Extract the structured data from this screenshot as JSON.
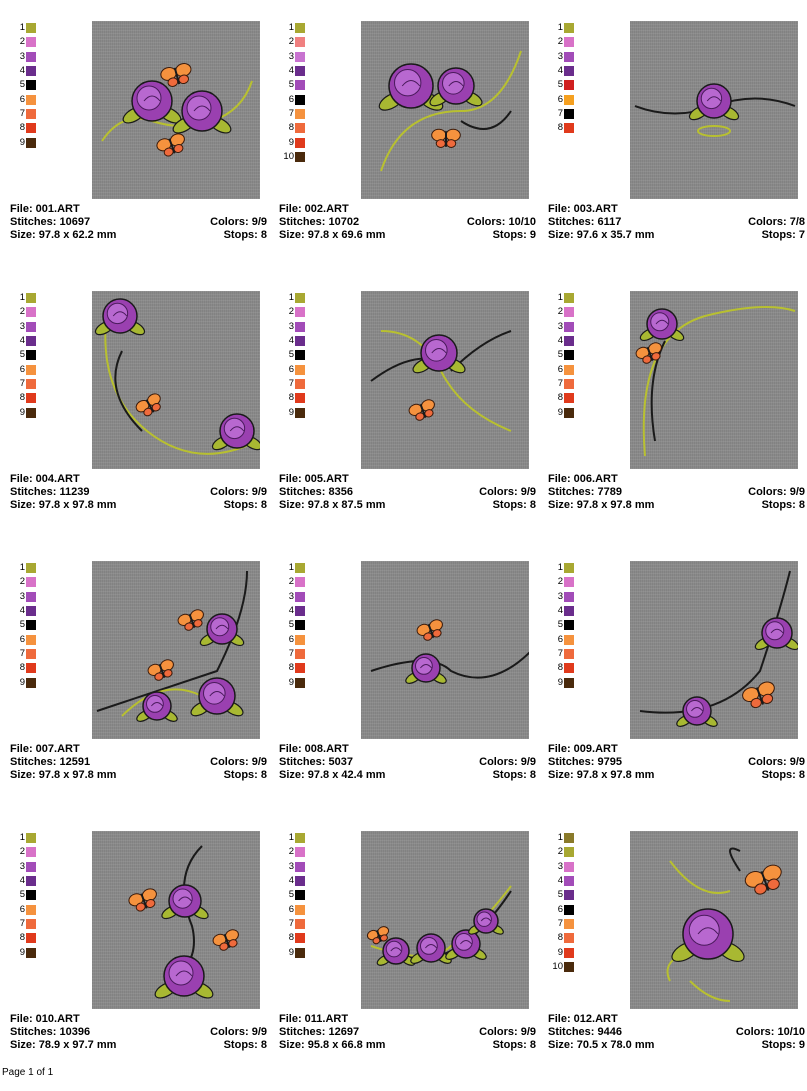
{
  "palette": {
    "1": "#a8a832",
    "2": "#d872c8",
    "3": "#9a40b0",
    "4": "#6a2d8c",
    "5": "#000000",
    "6": "#f5923e",
    "7": "#ef6a3c",
    "8": "#e03a1c",
    "9": "#4a2a0c",
    "10": "#4a2a0c"
  },
  "designs": [
    {
      "file": "File: 001.ART",
      "stitches": "Stitches: 10697",
      "colors": "Colors: 9/9",
      "size": "Size: 97.8 x 62.2 mm",
      "stops": "Stops: 8",
      "swatches": [
        [
          "1",
          "#a8a832"
        ],
        [
          "2",
          "#d872c8"
        ],
        [
          "3",
          "#a24cb8"
        ],
        [
          "4",
          "#6a2d8c"
        ],
        [
          "5",
          "#000000"
        ],
        [
          "6",
          "#f5923e"
        ],
        [
          "7",
          "#ef6a3c"
        ],
        [
          "8",
          "#e03a1c"
        ],
        [
          "9",
          "#4a2a0c"
        ]
      ]
    },
    {
      "file": "File: 002.ART",
      "stitches": "Stitches: 10702",
      "colors": "Colors: 10/10",
      "size": "Size: 97.8 x 69.6 mm",
      "stops": "Stops: 9",
      "swatches": [
        [
          "1",
          "#a8a832"
        ],
        [
          "2",
          "#f08080"
        ],
        [
          "3",
          "#c873d0"
        ],
        [
          "4",
          "#6a2d8c"
        ],
        [
          "5",
          "#a24cb8"
        ],
        [
          "6",
          "#000000"
        ],
        [
          "7",
          "#f5923e"
        ],
        [
          "8",
          "#ef6a3c"
        ],
        [
          "9",
          "#e03a1c"
        ],
        [
          "10",
          "#4a2a0c"
        ]
      ]
    },
    {
      "file": "File: 003.ART",
      "stitches": "Stitches: 6117",
      "colors": "Colors: 7/8",
      "size": "Size: 97.6 x 35.7 mm",
      "stops": "Stops: 7",
      "swatches": [
        [
          "1",
          "#a8a832"
        ],
        [
          "2",
          "#d872c8"
        ],
        [
          "3",
          "#a24cb8"
        ],
        [
          "4",
          "#6a2d8c"
        ],
        [
          "5",
          "#d02020"
        ],
        [
          "6",
          "#f5a020"
        ],
        [
          "7",
          "#000000"
        ],
        [
          "8",
          "#e03a1c"
        ]
      ]
    },
    {
      "file": "File: 004.ART",
      "stitches": "Stitches: 11239",
      "colors": "Colors: 9/9",
      "size": "Size: 97.8 x 97.8 mm",
      "stops": "Stops: 8",
      "swatches": [
        [
          "1",
          "#a8a832"
        ],
        [
          "2",
          "#d872c8"
        ],
        [
          "3",
          "#a24cb8"
        ],
        [
          "4",
          "#6a2d8c"
        ],
        [
          "5",
          "#000000"
        ],
        [
          "6",
          "#f5923e"
        ],
        [
          "7",
          "#ef6a3c"
        ],
        [
          "8",
          "#e03a1c"
        ],
        [
          "9",
          "#4a2a0c"
        ]
      ]
    },
    {
      "file": "File: 005.ART",
      "stitches": "Stitches: 8356",
      "colors": "Colors: 9/9",
      "size": "Size: 97.8 x 87.5 mm",
      "stops": "Stops: 8",
      "swatches": [
        [
          "1",
          "#a8a832"
        ],
        [
          "2",
          "#d872c8"
        ],
        [
          "3",
          "#a24cb8"
        ],
        [
          "4",
          "#6a2d8c"
        ],
        [
          "5",
          "#000000"
        ],
        [
          "6",
          "#f5923e"
        ],
        [
          "7",
          "#ef6a3c"
        ],
        [
          "8",
          "#e03a1c"
        ],
        [
          "9",
          "#4a2a0c"
        ]
      ]
    },
    {
      "file": "File: 006.ART",
      "stitches": "Stitches: 7789",
      "colors": "Colors: 9/9",
      "size": "Size: 97.8 x 97.8 mm",
      "stops": "Stops: 8",
      "swatches": [
        [
          "1",
          "#a8a832"
        ],
        [
          "2",
          "#d872c8"
        ],
        [
          "3",
          "#a24cb8"
        ],
        [
          "4",
          "#6a2d8c"
        ],
        [
          "5",
          "#000000"
        ],
        [
          "6",
          "#f5923e"
        ],
        [
          "7",
          "#ef6a3c"
        ],
        [
          "8",
          "#e03a1c"
        ],
        [
          "9",
          "#4a2a0c"
        ]
      ]
    },
    {
      "file": "File: 007.ART",
      "stitches": "Stitches: 12591",
      "colors": "Colors: 9/9",
      "size": "Size: 97.8 x 97.8 mm",
      "stops": "Stops: 8",
      "swatches": [
        [
          "1",
          "#a8a832"
        ],
        [
          "2",
          "#d872c8"
        ],
        [
          "3",
          "#a24cb8"
        ],
        [
          "4",
          "#6a2d8c"
        ],
        [
          "5",
          "#000000"
        ],
        [
          "6",
          "#f5923e"
        ],
        [
          "7",
          "#ef6a3c"
        ],
        [
          "8",
          "#e03a1c"
        ],
        [
          "9",
          "#4a2a0c"
        ]
      ]
    },
    {
      "file": "File: 008.ART",
      "stitches": "Stitches: 5037",
      "colors": "Colors: 9/9",
      "size": "Size: 97.8 x 42.4 mm",
      "stops": "Stops: 8",
      "swatches": [
        [
          "1",
          "#a8a832"
        ],
        [
          "2",
          "#d872c8"
        ],
        [
          "3",
          "#a24cb8"
        ],
        [
          "4",
          "#6a2d8c"
        ],
        [
          "5",
          "#000000"
        ],
        [
          "6",
          "#f5923e"
        ],
        [
          "7",
          "#ef6a3c"
        ],
        [
          "8",
          "#e03a1c"
        ],
        [
          "9",
          "#4a2a0c"
        ]
      ]
    },
    {
      "file": "File: 009.ART",
      "stitches": "Stitches: 9795",
      "colors": "Colors: 9/9",
      "size": "Size: 97.8 x 97.8 mm",
      "stops": "Stops: 8",
      "swatches": [
        [
          "1",
          "#a8a832"
        ],
        [
          "2",
          "#d872c8"
        ],
        [
          "3",
          "#a24cb8"
        ],
        [
          "4",
          "#6a2d8c"
        ],
        [
          "5",
          "#000000"
        ],
        [
          "6",
          "#f5923e"
        ],
        [
          "7",
          "#ef6a3c"
        ],
        [
          "8",
          "#e03a1c"
        ],
        [
          "9",
          "#4a2a0c"
        ]
      ]
    },
    {
      "file": "File: 010.ART",
      "stitches": "Stitches: 10396",
      "colors": "Colors: 9/9",
      "size": "Size: 78.9 x 97.7 mm",
      "stops": "Stops: 8",
      "swatches": [
        [
          "1",
          "#a8a832"
        ],
        [
          "2",
          "#d872c8"
        ],
        [
          "3",
          "#a24cb8"
        ],
        [
          "4",
          "#6a2d8c"
        ],
        [
          "5",
          "#000000"
        ],
        [
          "6",
          "#f5923e"
        ],
        [
          "7",
          "#ef6a3c"
        ],
        [
          "8",
          "#e03a1c"
        ],
        [
          "9",
          "#4a2a0c"
        ]
      ]
    },
    {
      "file": "File: 011.ART",
      "stitches": "Stitches: 12697",
      "colors": "Colors: 9/9",
      "size": "Size: 95.8 x 66.8 mm",
      "stops": "Stops: 8",
      "swatches": [
        [
          "1",
          "#a8a832"
        ],
        [
          "2",
          "#d872c8"
        ],
        [
          "3",
          "#a24cb8"
        ],
        [
          "4",
          "#6a2d8c"
        ],
        [
          "5",
          "#000000"
        ],
        [
          "6",
          "#f5923e"
        ],
        [
          "7",
          "#ef6a3c"
        ],
        [
          "8",
          "#e03a1c"
        ],
        [
          "9",
          "#4a2a0c"
        ]
      ]
    },
    {
      "file": "File: 012.ART",
      "stitches": "Stitches: 9446",
      "colors": "Colors: 10/10",
      "size": "Size: 70.5 x 78.0 mm",
      "stops": "Stops: 9",
      "swatches": [
        [
          "1",
          "#8a7a2a"
        ],
        [
          "2",
          "#a8a832"
        ],
        [
          "3",
          "#d872c8"
        ],
        [
          "4",
          "#a24cb8"
        ],
        [
          "5",
          "#6a2d8c"
        ],
        [
          "6",
          "#000000"
        ],
        [
          "7",
          "#f5923e"
        ],
        [
          "8",
          "#ef6a3c"
        ],
        [
          "9",
          "#e03a1c"
        ],
        [
          "10",
          "#4a2a0c"
        ]
      ]
    }
  ],
  "footer": {
    "page": "Page 1 of 1"
  }
}
